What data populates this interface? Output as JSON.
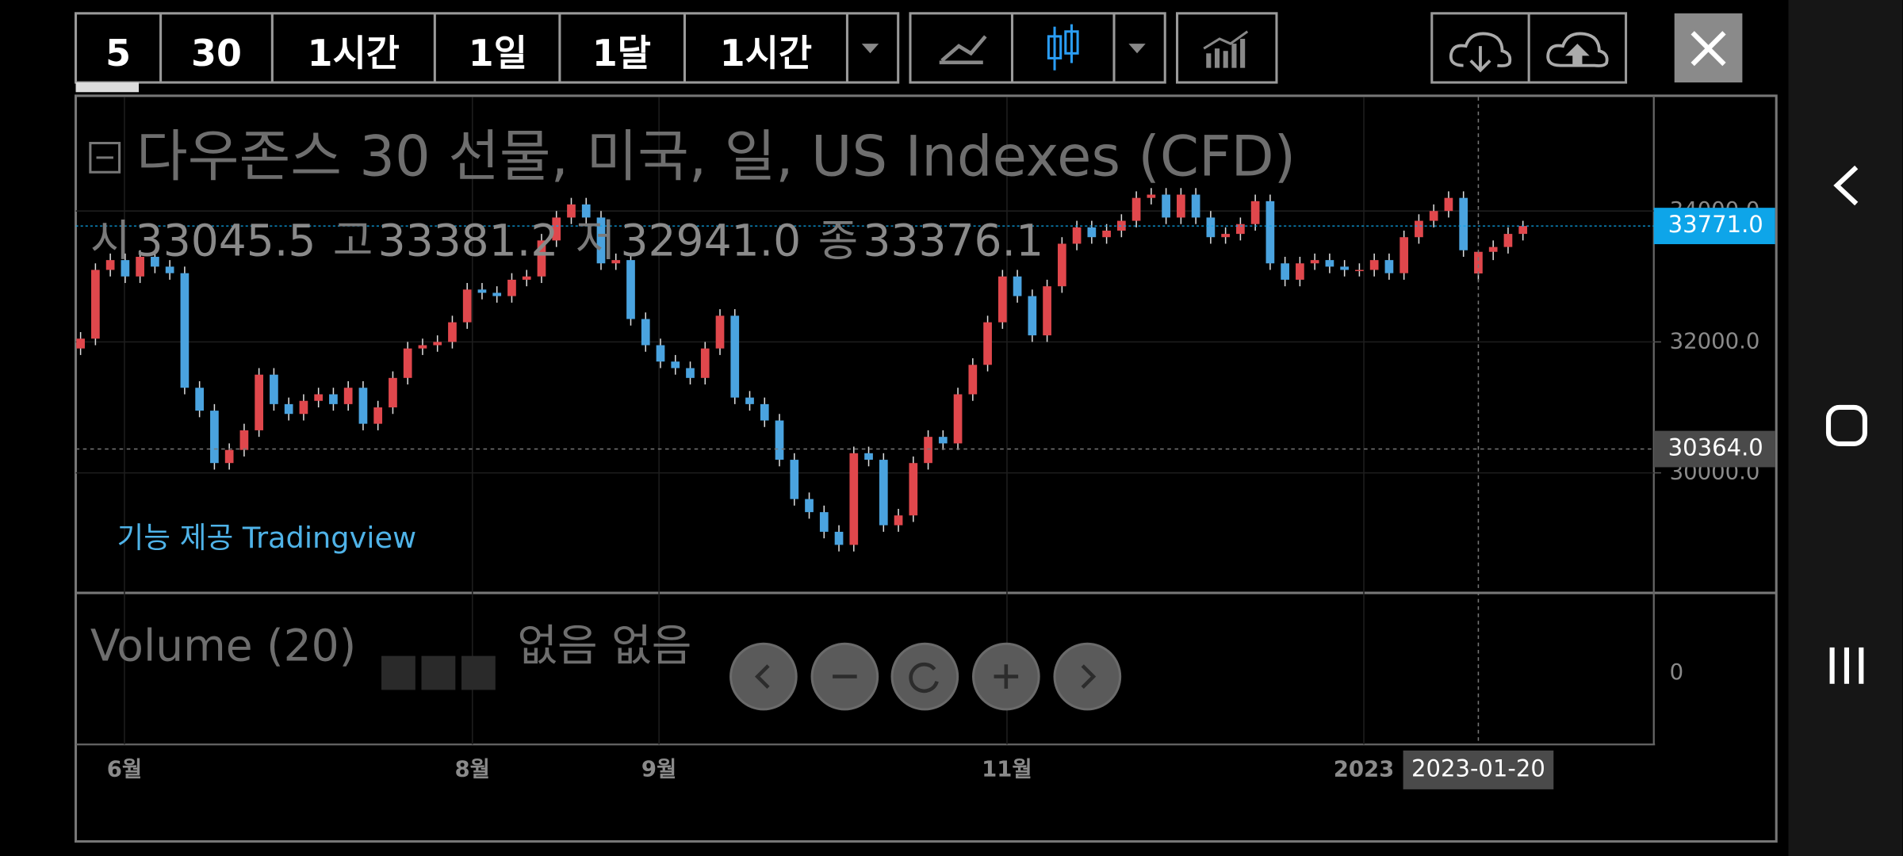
{
  "toolbar": {
    "intervals": [
      "5",
      "30",
      "1시간",
      "1일",
      "1달",
      "1시간"
    ],
    "active_color": "#ffff33"
  },
  "chart_data": {
    "type": "candlestick",
    "title": "다우존스 30 선물, 미국, 일, US Indexes (CFD)",
    "ohlc_legend": [
      {
        "label": "시",
        "value": 33045.5
      },
      {
        "label": "고",
        "value": 33381.2
      },
      {
        "label": "저",
        "value": {
          "value": 32941,
          "label": "32941.0"
        }
      },
      {
        "label": "종",
        "value": 33376.1
      }
    ],
    "attribution": "기능 제공 Tradingview",
    "up_color": "#e0474c",
    "down_color": "#4aa3df",
    "grid": true,
    "xlim": [
      -0.65,
      211.6
    ],
    "ylim": [
      28185,
      35741
    ],
    "yticks": [
      {
        "value": 30000,
        "label": "30000.0"
      },
      {
        "value": 32000,
        "label": "32000.0"
      },
      {
        "value": 34000,
        "label": "34000.0"
      }
    ],
    "xticks": [
      {
        "value": 5.9,
        "label": "6월"
      },
      {
        "value": 52.7,
        "label": "8월"
      },
      {
        "value": 77.8,
        "label": "9월"
      },
      {
        "value": 124.6,
        "label": "11월"
      },
      {
        "value": 172.6,
        "label": "2023"
      }
    ],
    "last_price": {
      "value": 33771,
      "label": "33771.0",
      "color": "#0ea5e9"
    },
    "crosshair": {
      "price": {
        "value": 30364,
        "label": "30364.0"
      },
      "date": {
        "value": 188,
        "label": "2023-01-20"
      }
    },
    "x": [
      0,
      2,
      4,
      6,
      8,
      10,
      12,
      14,
      16,
      18,
      20,
      22,
      24,
      26,
      28,
      30,
      32,
      34,
      36,
      38,
      40,
      42,
      44,
      46,
      48,
      50,
      52,
      54,
      56,
      58,
      60,
      62,
      64,
      66,
      68,
      70,
      72,
      74,
      76,
      78,
      80,
      82,
      84,
      86,
      88,
      90,
      92,
      94,
      96,
      98,
      100,
      102,
      104,
      106,
      108,
      110,
      112,
      114,
      116,
      118,
      120,
      122,
      124,
      126,
      128,
      130,
      132,
      134,
      136,
      138,
      140,
      142,
      144,
      146,
      148,
      150,
      152,
      154,
      156,
      158,
      160,
      162,
      164,
      166,
      168,
      170,
      172,
      174,
      176,
      178,
      180,
      182,
      184,
      186,
      188,
      190,
      192,
      194
    ],
    "open": [
      31900,
      32050,
      33100,
      33250,
      33000,
      33300,
      33150,
      33050,
      31300,
      30950,
      30150,
      30350,
      30650,
      31500,
      31050,
      30900,
      31100,
      31200,
      31050,
      31300,
      30750,
      31000,
      31450,
      31900,
      31950,
      32000,
      32300,
      32800,
      32750,
      32700,
      32950,
      33000,
      33550,
      33900,
      34100,
      33900,
      33200,
      33250,
      32350,
      31950,
      31700,
      31600,
      31450,
      31900,
      32400,
      31150,
      31050,
      30800,
      30200,
      29600,
      29400,
      29100,
      28900,
      30300,
      30200,
      29200,
      29350,
      30150,
      30550,
      30450,
      31200,
      31650,
      32300,
      33000,
      32700,
      32100,
      32850,
      33500,
      33750,
      33600,
      33700,
      33850,
      34200,
      34250,
      33900,
      34250,
      33900,
      33600,
      33650,
      33800,
      34150,
      33200,
      32950,
      33200,
      33250,
      33150,
      33100,
      33100,
      33250,
      33050,
      33600,
      33850,
      34000,
      34200,
      33045.5,
      33376.1,
      33450,
      33650
    ],
    "high": [
      32150,
      33200,
      33350,
      33350,
      33400,
      33400,
      33250,
      33150,
      31400,
      31050,
      30450,
      30750,
      31600,
      31600,
      31150,
      31200,
      31300,
      31300,
      31400,
      31400,
      31100,
      31550,
      32000,
      32050,
      32100,
      32400,
      32900,
      32900,
      32850,
      33050,
      33100,
      33650,
      34000,
      34200,
      34200,
      34000,
      33350,
      33350,
      32450,
      32050,
      31800,
      31700,
      32000,
      32500,
      32500,
      31250,
      31150,
      30900,
      30300,
      29700,
      29500,
      29200,
      30400,
      30400,
      30300,
      29450,
      30250,
      30650,
      30650,
      31300,
      31750,
      32400,
      33100,
      33100,
      32800,
      32950,
      33600,
      33850,
      33850,
      33800,
      33950,
      34300,
      34350,
      34350,
      34350,
      34350,
      34000,
      33750,
      33900,
      34250,
      34250,
      33300,
      33300,
      33350,
      33350,
      33250,
      33200,
      33350,
      33350,
      33700,
      33950,
      34100,
      34300,
      34300,
      33381.2,
      33550,
      33750,
      33850
    ],
    "low": [
      31800,
      31950,
      33000,
      32900,
      32900,
      33050,
      32950,
      31200,
      30850,
      30050,
      30050,
      30250,
      30550,
      30950,
      30800,
      30800,
      31000,
      30950,
      30950,
      30650,
      30650,
      30900,
      31350,
      31800,
      31850,
      31900,
      32200,
      32650,
      32600,
      32600,
      32850,
      32900,
      33450,
      33800,
      33800,
      33100,
      33100,
      32250,
      31850,
      31600,
      31500,
      31350,
      31350,
      31800,
      31050,
      30950,
      30700,
      30100,
      29500,
      29300,
      29000,
      28800,
      28800,
      30100,
      29100,
      29100,
      29250,
      30050,
      30350,
      30350,
      31100,
      31550,
      32200,
      32600,
      32000,
      32000,
      32750,
      33400,
      33500,
      33500,
      33600,
      33750,
      34100,
      33800,
      33800,
      33800,
      33500,
      33500,
      33550,
      33700,
      33100,
      32850,
      32850,
      33100,
      33050,
      33000,
      33000,
      33000,
      32950,
      32950,
      33500,
      33750,
      33900,
      33300,
      32941,
      33250,
      33350,
      33550
    ],
    "close": [
      32050,
      33100,
      33250,
      33000,
      33300,
      33150,
      33050,
      31300,
      30950,
      30150,
      30350,
      30650,
      31500,
      31050,
      30900,
      31100,
      31200,
      31050,
      31300,
      30750,
      31000,
      31450,
      31900,
      31950,
      32000,
      32300,
      32800,
      32750,
      32700,
      32950,
      33000,
      33550,
      33900,
      34100,
      33900,
      33200,
      33250,
      32350,
      31950,
      31700,
      31600,
      31450,
      31900,
      32400,
      31150,
      31050,
      30800,
      30200,
      29600,
      29400,
      29100,
      28900,
      30300,
      30200,
      29200,
      29350,
      30150,
      30550,
      30450,
      31200,
      31650,
      32300,
      33000,
      32700,
      32100,
      32850,
      33500,
      33750,
      33600,
      33700,
      33850,
      34200,
      34250,
      33900,
      34250,
      33900,
      33600,
      33650,
      33800,
      34150,
      33200,
      32950,
      33200,
      33250,
      33150,
      33100,
      33100,
      33250,
      33050,
      33600,
      33850,
      34000,
      34200,
      33400,
      33376.1,
      33450,
      33650,
      33771
    ]
  },
  "volume": {
    "title": "Volume (20)",
    "status": "없음 없음",
    "yticks": [
      0
    ]
  }
}
